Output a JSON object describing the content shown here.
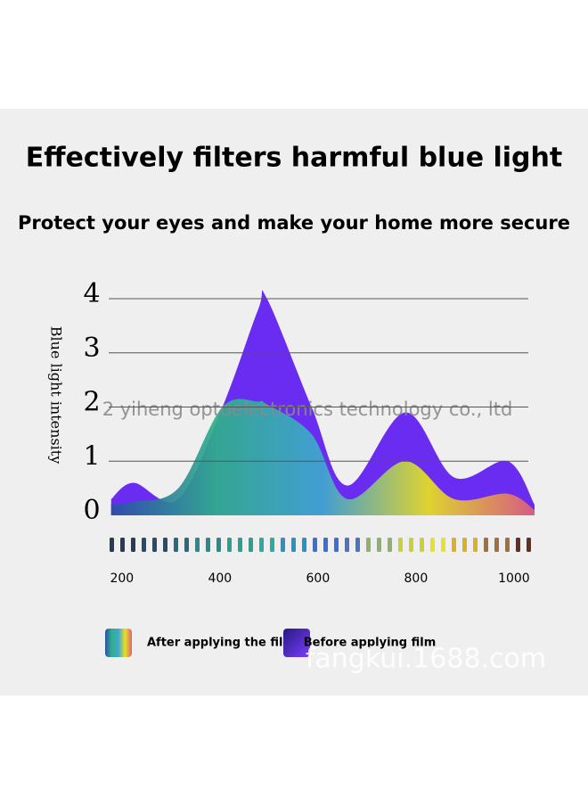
{
  "chart_data": {
    "type": "area",
    "title": "Effectively filters harmful blue light",
    "subtitle": "Protect your eyes and make your home more secure",
    "y_label": "Blue light intensity",
    "x": [
      178,
      224,
      315,
      405,
      478,
      496,
      587,
      660,
      778,
      878,
      987,
      1042
    ],
    "series": [
      {
        "name": "Before applying film",
        "color": "#6a2cf0",
        "values": [
          0.3,
          0.6,
          0.3,
          2.0,
          3.8,
          4.0,
          2.0,
          0.55,
          1.9,
          0.7,
          1.0,
          0.2
        ]
      },
      {
        "name": "After applying the film",
        "color": "#2fb08a",
        "gradient": [
          "#2c4fa8",
          "#2fb08a",
          "#3fa8d0",
          "#e8e020",
          "#e0607a"
        ],
        "values": [
          0.2,
          0.25,
          0.5,
          2.0,
          2.1,
          2.05,
          1.5,
          0.3,
          1.0,
          0.3,
          0.4,
          0.1
        ]
      }
    ],
    "xlim": [
      173,
      1042
    ],
    "xticks": [
      200,
      400,
      600,
      800,
      1000
    ],
    "ylim": [
      0,
      4
    ],
    "yticks": [
      0,
      1,
      2,
      3,
      4
    ],
    "grid": true,
    "watermarks": [
      "2 yiheng optoelectronics technology co., ltd",
      "fangkui.1688.com"
    ]
  }
}
